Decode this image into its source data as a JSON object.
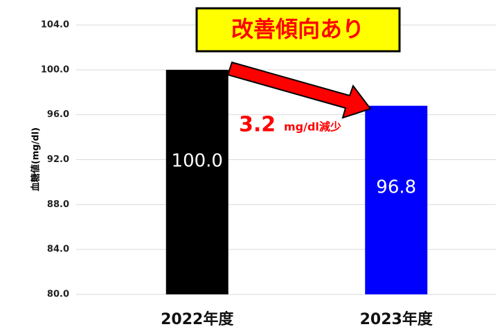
{
  "chart_data": {
    "type": "bar",
    "ylabel": "血糖値(mg/dl)",
    "categories": [
      "2022年度",
      "2023年度"
    ],
    "values": [
      100.0,
      96.8
    ],
    "value_labels": [
      "100.0",
      "96.8"
    ],
    "colors": [
      "#000000",
      "#0000ff"
    ],
    "ylim": [
      80,
      104
    ],
    "yticks": [
      {
        "value": 80,
        "label": "80.0"
      },
      {
        "value": 84,
        "label": "84.0"
      },
      {
        "value": 88,
        "label": "88.0"
      },
      {
        "value": 92,
        "label": "92.0"
      },
      {
        "value": 96,
        "label": "96.0"
      },
      {
        "value": 100,
        "label": "100.0"
      },
      {
        "value": 104,
        "label": "104.0"
      }
    ],
    "grid": true,
    "annotations": {
      "headline": "改善傾向あり",
      "change_value": "3.2",
      "change_unit": "mg/dl減少"
    }
  }
}
